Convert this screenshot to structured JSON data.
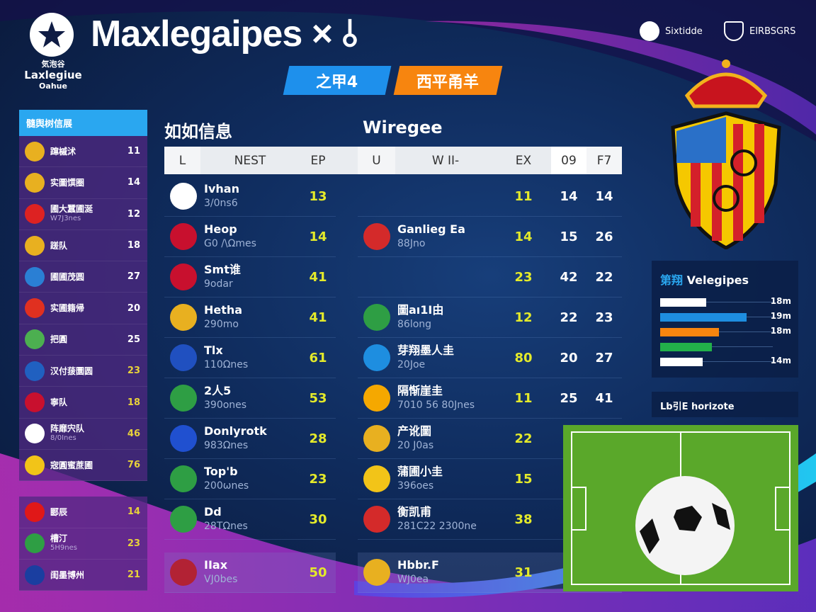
{
  "header": {
    "title": "Maxlegaipes × ⫰",
    "logo_lines": [
      "気泡谷",
      "Laxlegiue",
      "Oahue"
    ],
    "tabs": [
      "之甲4",
      "西平甬羊"
    ],
    "links": [
      {
        "icon": "soccer-ball-icon",
        "label": "Sixtidde"
      },
      {
        "icon": "shield-icon",
        "label": "EIRBSGRS"
      }
    ]
  },
  "sidebar": {
    "title": "髓舆树信展",
    "groups": [
      [
        {
          "icon": "spain-crest-icon",
          "color": "#e8b020",
          "label": "蹿槭沭",
          "value": "11"
        },
        {
          "icon": "spain-crest-icon",
          "color": "#e8b020",
          "label": "实圖馔圈",
          "value": "14"
        },
        {
          "icon": "netherlands-flag-icon",
          "color": "#d22",
          "label": "圃大蠶圃涎",
          "sub": "W7J3nes",
          "value": "12"
        },
        {
          "icon": "spain-crest-icon",
          "color": "#e8b020",
          "label": "蹉队",
          "value": "18"
        },
        {
          "icon": "blue-shield-icon",
          "color": "#2a7fd4",
          "label": "圃圃茂圆",
          "value": "27"
        },
        {
          "icon": "red-badge-icon",
          "color": "#e03020",
          "label": "实圃籍帰",
          "value": "20"
        },
        {
          "icon": "green-badge-icon",
          "color": "#4caf50",
          "label": "把圓",
          "value": "25"
        },
        {
          "icon": "blue-red-badge-icon",
          "color": "#2060c0",
          "label": "汉付菝圜圆",
          "value": "23",
          "highlight": true
        },
        {
          "icon": "uk-flag-icon",
          "color": "#c8102e",
          "label": "寧队",
          "value": "18",
          "highlight": true
        },
        {
          "icon": "soccer-ball-icon",
          "color": "#ffffff",
          "label": "阵靡宍队",
          "sub": "8/0Ines",
          "value": "46",
          "highlight": true
        },
        {
          "icon": "yellow-badge-icon",
          "color": "#f2c418",
          "label": "宼圓蜜蔗圃",
          "value": "76",
          "highlight": true
        }
      ],
      [
        {
          "icon": "red-badge-icon",
          "color": "#e01818",
          "label": "郾辰",
          "value": "14",
          "highlight": true
        },
        {
          "icon": "italy-badge-icon",
          "color": "#2e9e44",
          "label": "槽汀",
          "sub": "5H9nes",
          "value": "23",
          "highlight": true
        },
        {
          "icon": "blue-badge-icon",
          "color": "#1a3ea0",
          "label": "闺墨博州",
          "value": "21",
          "highlight": true
        }
      ]
    ]
  },
  "main": {
    "left_title": "如如信息",
    "right_title": "Wiregee",
    "columns": [
      "L",
      "NEST",
      "EP",
      "U",
      "W II-",
      "EX",
      "09",
      "F7"
    ],
    "left_rows": [
      {
        "icon": "soccer-ball-icon",
        "color": "#fff",
        "name": "Ivhan",
        "sub": "3/0ns6",
        "ep": "13"
      },
      {
        "icon": "uk-flag-icon",
        "color": "#c8102e",
        "name": "Heop",
        "sub": "G0 /\\Ωmes",
        "ep": "14"
      },
      {
        "icon": "uk-flag-icon",
        "color": "#c8102e",
        "name": "Smt谁",
        "sub": "9odar",
        "ep": "41"
      },
      {
        "icon": "spain-crest-icon",
        "color": "#e8b020",
        "name": "Hetha",
        "sub": "290mo",
        "ep": "41"
      },
      {
        "icon": "club-badge-icon",
        "color": "#2050c0",
        "name": "Tlx",
        "sub": "110Ωnes",
        "ep": "61"
      },
      {
        "icon": "multicolor-badge-icon",
        "color": "#2e9e44",
        "name": "2人5",
        "sub": "390ones",
        "ep": "53"
      },
      {
        "icon": "france-flag-icon",
        "color": "#2050d0",
        "name": "Donlyrotk",
        "sub": "983Ωnes",
        "ep": "28"
      },
      {
        "icon": "italy-flag-icon",
        "color": "#2e9e44",
        "name": "Top'b",
        "sub": "200ωnes",
        "ep": "23"
      },
      {
        "icon": "italy-flag-icon",
        "color": "#2e9e44",
        "name": "Dd",
        "sub": "28TΩnes",
        "ep": "30"
      },
      {
        "icon": "usa-flag-icon",
        "color": "#b22234",
        "name": "IIax",
        "sub": "VJ0bes",
        "ep": "50"
      }
    ],
    "right_rows": [
      {
        "name": "",
        "sub": "",
        "ex": "11",
        "c09": "14",
        "f7": "14"
      },
      {
        "icon": "red-striped-shield-icon",
        "color": "#d42a2a",
        "name": "Ganlieg Ea",
        "sub": "88Jno",
        "ex": "14",
        "c09": "15",
        "f7": "26"
      },
      {
        "name": "",
        "sub": "",
        "ex": "23",
        "c09": "42",
        "f7": "22"
      },
      {
        "icon": "italy-flag-icon",
        "color": "#2e9e44",
        "name": "圖aı1Ⅰ由",
        "sub": "86long",
        "ex": "12",
        "c09": "22",
        "f7": "23"
      },
      {
        "icon": "blue-ball-icon",
        "color": "#1e8ee0",
        "name": "芽翔墨人圭",
        "sub": "20Joe",
        "ex": "80",
        "c09": "20",
        "f7": "27"
      },
      {
        "icon": "orange-badge-icon",
        "color": "#f5a800",
        "name": "隔惭崖圭",
        "sub": "7010 56 80Jnes",
        "ex": "11",
        "c09": "25",
        "f7": "41"
      },
      {
        "icon": "spain-crest-icon",
        "color": "#e8b020",
        "name": "产讹圖",
        "sub": "20 J0as",
        "ex": "22"
      },
      {
        "icon": "spain-flag-icon",
        "color": "#f2c418",
        "name": "蒲圃小圭",
        "sub": "396oes",
        "ex": "15"
      },
      {
        "icon": "red-blue-shield-icon",
        "color": "#d42a2a",
        "name": "衡凯甫",
        "sub": "281C22 2300ne",
        "ex": "38"
      },
      {
        "icon": "spain-crest-icon",
        "color": "#e8b020",
        "name": "Hbbr.F",
        "sub": "WJ0ea",
        "ex": "31"
      }
    ]
  },
  "ranking": {
    "title_cn": "第翔",
    "title": "Velegipes",
    "bars": [
      {
        "color": "#ffffff",
        "fraction": 0.38,
        "label": "18m"
      },
      {
        "color": "#1e8ee0",
        "fraction": 0.72,
        "label": "19m"
      },
      {
        "color": "#f7850f",
        "fraction": 0.49,
        "label": "18m"
      },
      {
        "color": "#22b04a",
        "fraction": 0.43,
        "label": ""
      },
      {
        "color": "#ffffff",
        "fraction": 0.35,
        "label": "14m"
      }
    ]
  },
  "footer_panel": {
    "label": "Lb引E horizote"
  }
}
